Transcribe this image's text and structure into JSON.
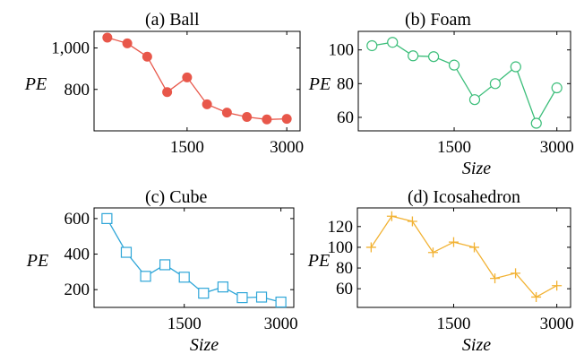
{
  "chart_data": [
    {
      "type": "line",
      "title": "(a) Ball",
      "xlabel": "",
      "ylabel": "PE",
      "xticks": [
        1500,
        3000
      ],
      "xtick_labels": [
        "1500",
        "3000"
      ],
      "yticks": [
        800,
        1000
      ],
      "ytick_labels": [
        "800",
        "1,000"
      ],
      "xlim": [
        100,
        3200
      ],
      "ylim": [
        600,
        1080
      ],
      "color": "#E8574A",
      "marker": "circle-filled",
      "x": [
        300,
        600,
        900,
        1200,
        1500,
        1800,
        2100,
        2400,
        2700,
        3000
      ],
      "y": [
        1050,
        1022,
        958,
        787,
        858,
        728,
        688,
        667,
        655,
        658
      ]
    },
    {
      "type": "line",
      "title": "(b) Foam",
      "xlabel": "Size",
      "ylabel": "PE",
      "xticks": [
        1500,
        3000
      ],
      "xtick_labels": [
        "1500",
        "3000"
      ],
      "yticks": [
        60,
        80,
        100
      ],
      "ytick_labels": [
        "60",
        "80",
        "100"
      ],
      "xlim": [
        100,
        3200
      ],
      "ylim": [
        52,
        111
      ],
      "color": "#3CBE7A",
      "marker": "circle-open",
      "x": [
        300,
        600,
        900,
        1200,
        1500,
        1800,
        2100,
        2400,
        2700,
        3000
      ],
      "y": [
        102.5,
        104.5,
        96.5,
        96,
        91,
        70.5,
        80,
        90,
        56.5,
        77.5
      ]
    },
    {
      "type": "line",
      "title": "(c) Cube",
      "xlabel": "Size",
      "ylabel": "PE",
      "xticks": [
        1500,
        3000
      ],
      "xtick_labels": [
        "1500",
        "3000"
      ],
      "yticks": [
        200,
        400,
        600
      ],
      "ytick_labels": [
        "200",
        "400",
        "600"
      ],
      "xlim": [
        100,
        3200
      ],
      "ylim": [
        100,
        660
      ],
      "color": "#2FA6D8",
      "marker": "square-open",
      "x": [
        300,
        600,
        900,
        1200,
        1500,
        1800,
        2100,
        2400,
        2700,
        3000
      ],
      "y": [
        600,
        410,
        275,
        340,
        270,
        180,
        215,
        155,
        158,
        130
      ]
    },
    {
      "type": "line",
      "title": "(d) Icosahedron",
      "xlabel": "Size",
      "ylabel": "PE",
      "xticks": [
        1500,
        3000
      ],
      "xtick_labels": [
        "1500",
        "3000"
      ],
      "yticks": [
        60,
        80,
        100,
        120
      ],
      "ytick_labels": [
        "60",
        "80",
        "100",
        "120"
      ],
      "xlim": [
        100,
        3200
      ],
      "ylim": [
        42,
        138
      ],
      "color": "#F2B233",
      "marker": "plus",
      "x": [
        300,
        600,
        900,
        1200,
        1500,
        1800,
        2100,
        2400,
        2700,
        3000
      ],
      "y": [
        100,
        130,
        125,
        95,
        105,
        100,
        70,
        75,
        52,
        63
      ]
    }
  ]
}
